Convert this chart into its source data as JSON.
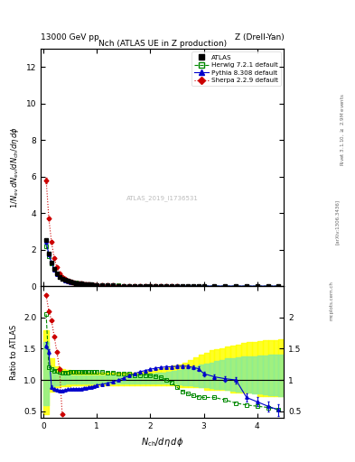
{
  "title_top": "13000 GeV pp",
  "title_top_right": "Z (Drell-Yan)",
  "plot_title": "Nch (ATLAS UE in Z production)",
  "watermark": "ATLAS_2019_I1736531",
  "ylim_main": [
    0,
    13
  ],
  "ylim_ratio": [
    0.39,
    2.5
  ],
  "xlim": [
    -0.05,
    4.5
  ],
  "atlas_x": [
    0.05,
    0.1,
    0.15,
    0.2,
    0.25,
    0.3,
    0.35,
    0.4,
    0.45,
    0.5,
    0.55,
    0.6,
    0.65,
    0.7,
    0.75,
    0.8,
    0.85,
    0.9,
    0.95,
    1.0,
    1.1,
    1.2,
    1.3,
    1.4,
    1.5,
    1.6,
    1.7,
    1.8,
    1.9,
    2.0,
    2.1,
    2.2,
    2.3,
    2.4,
    2.5,
    2.6,
    2.7,
    2.8,
    2.9,
    3.0,
    3.2,
    3.4,
    3.6,
    3.8,
    4.0,
    4.2,
    4.4
  ],
  "atlas_y": [
    2.5,
    1.8,
    1.3,
    0.92,
    0.68,
    0.52,
    0.41,
    0.335,
    0.28,
    0.237,
    0.203,
    0.175,
    0.153,
    0.134,
    0.118,
    0.104,
    0.092,
    0.082,
    0.073,
    0.065,
    0.052,
    0.042,
    0.034,
    0.028,
    0.023,
    0.019,
    0.016,
    0.013,
    0.011,
    0.009,
    0.0075,
    0.0063,
    0.0053,
    0.0044,
    0.0037,
    0.003,
    0.0025,
    0.002,
    0.0016,
    0.0013,
    0.0008,
    0.0005,
    0.0003,
    0.0002,
    0.00012,
    7e-05,
    4e-05
  ],
  "atlas_yerr": [
    0.04,
    0.03,
    0.02,
    0.015,
    0.01,
    0.008,
    0.006,
    0.005,
    0.004,
    0.003,
    0.003,
    0.002,
    0.002,
    0.002,
    0.001,
    0.001,
    0.001,
    0.001,
    0.001,
    0.001,
    0.001,
    0.001,
    0.001,
    0.001,
    0.001,
    0.001,
    0.001,
    0.001,
    0.001,
    0.001,
    0.001,
    0.001,
    0.001,
    0.001,
    0.001,
    0.001,
    0.001,
    0.001,
    0.001,
    0.001,
    0.001,
    0.001,
    0.001,
    0.001,
    0.001,
    0.001,
    0.001
  ],
  "herwig_x": [
    0.05,
    0.1,
    0.15,
    0.2,
    0.25,
    0.3,
    0.35,
    0.4,
    0.45,
    0.5,
    0.55,
    0.6,
    0.65,
    0.7,
    0.75,
    0.8,
    0.85,
    0.9,
    0.95,
    1.0,
    1.1,
    1.2,
    1.3,
    1.4,
    1.5,
    1.6,
    1.7,
    1.8,
    1.9,
    2.0,
    2.1,
    2.2,
    2.3,
    2.4,
    2.5,
    2.6,
    2.7,
    2.8,
    2.9,
    3.0,
    3.2,
    3.4,
    3.6,
    3.8,
    4.0,
    4.2,
    4.4
  ],
  "herwig_y": [
    2.2,
    1.65,
    1.25,
    0.92,
    0.7,
    0.545,
    0.435,
    0.355,
    0.295,
    0.248,
    0.212,
    0.183,
    0.159,
    0.139,
    0.122,
    0.108,
    0.096,
    0.086,
    0.077,
    0.069,
    0.056,
    0.045,
    0.037,
    0.03,
    0.025,
    0.021,
    0.017,
    0.014,
    0.012,
    0.01,
    0.0083,
    0.007,
    0.0058,
    0.0048,
    0.004,
    0.0033,
    0.0028,
    0.0023,
    0.0018,
    0.0015,
    0.001,
    0.0006,
    0.0004,
    0.00025,
    0.00015,
    9e-05,
    5e-05
  ],
  "pythia_x": [
    0.05,
    0.1,
    0.15,
    0.2,
    0.25,
    0.3,
    0.35,
    0.4,
    0.45,
    0.5,
    0.55,
    0.6,
    0.65,
    0.7,
    0.75,
    0.8,
    0.85,
    0.9,
    0.95,
    1.0,
    1.1,
    1.2,
    1.3,
    1.4,
    1.5,
    1.6,
    1.7,
    1.8,
    1.9,
    2.0,
    2.1,
    2.2,
    2.3,
    2.4,
    2.5,
    2.6,
    2.7,
    2.8,
    2.9,
    3.0,
    3.2,
    3.4,
    3.6,
    3.8,
    4.0,
    4.2,
    4.4
  ],
  "pythia_y": [
    2.4,
    1.75,
    1.28,
    0.9,
    0.66,
    0.5,
    0.39,
    0.315,
    0.262,
    0.22,
    0.188,
    0.162,
    0.141,
    0.123,
    0.108,
    0.095,
    0.085,
    0.075,
    0.067,
    0.06,
    0.048,
    0.039,
    0.032,
    0.026,
    0.021,
    0.018,
    0.015,
    0.012,
    0.01,
    0.0085,
    0.007,
    0.0059,
    0.005,
    0.0042,
    0.0035,
    0.003,
    0.0024,
    0.002,
    0.0016,
    0.0013,
    0.0009,
    0.0005,
    0.0003,
    0.0002,
    0.00013,
    8e-05,
    4e-05
  ],
  "sherpa_x": [
    0.05,
    0.1,
    0.15,
    0.2,
    0.25,
    0.3,
    0.35,
    0.4,
    0.45,
    0.5,
    0.55,
    0.6,
    0.65,
    0.7,
    0.75,
    0.8,
    0.85,
    0.9,
    0.95,
    1.0,
    1.1,
    1.2,
    1.3,
    1.4,
    1.5,
    1.6,
    1.7,
    1.8,
    1.9,
    2.0,
    2.1,
    2.2,
    2.3,
    2.4,
    2.5
  ],
  "sherpa_y": [
    5.8,
    3.7,
    2.4,
    1.55,
    1.02,
    0.7,
    0.5,
    0.38,
    0.3,
    0.244,
    0.203,
    0.172,
    0.148,
    0.128,
    0.112,
    0.098,
    0.087,
    0.077,
    0.068,
    0.061,
    0.049,
    0.039,
    0.031,
    0.025,
    0.02,
    0.017,
    0.014,
    0.011,
    0.009,
    0.0075,
    0.006,
    0.005,
    0.004,
    0.003,
    0.0025
  ],
  "sherpa_yerr": [
    0.15,
    0.09,
    0.06,
    0.04,
    0.025,
    0.018,
    0.013,
    0.01,
    0.008,
    0.006,
    0.005,
    0.004,
    0.004,
    0.003,
    0.003,
    0.002,
    0.002,
    0.002,
    0.002,
    0.001,
    0.001,
    0.001,
    0.001,
    0.001,
    0.001,
    0.001,
    0.001,
    0.001,
    0.001,
    0.001,
    0.001,
    0.001,
    0.001,
    0.001,
    0.001
  ],
  "ratio_herwig_x": [
    0.05,
    0.1,
    0.15,
    0.2,
    0.25,
    0.3,
    0.35,
    0.4,
    0.45,
    0.5,
    0.55,
    0.6,
    0.65,
    0.7,
    0.75,
    0.8,
    0.85,
    0.9,
    0.95,
    1.0,
    1.1,
    1.2,
    1.3,
    1.4,
    1.5,
    1.6,
    1.7,
    1.8,
    1.9,
    2.0,
    2.1,
    2.2,
    2.3,
    2.4,
    2.5,
    2.6,
    2.7,
    2.8,
    2.9,
    3.0,
    3.2,
    3.4,
    3.6,
    3.8,
    4.0,
    4.2,
    4.4
  ],
  "ratio_herwig_y": [
    2.05,
    1.2,
    1.18,
    1.15,
    1.15,
    1.13,
    1.12,
    1.12,
    1.12,
    1.13,
    1.13,
    1.13,
    1.13,
    1.13,
    1.13,
    1.13,
    1.13,
    1.13,
    1.13,
    1.13,
    1.13,
    1.12,
    1.12,
    1.1,
    1.1,
    1.1,
    1.08,
    1.08,
    1.08,
    1.07,
    1.06,
    1.04,
    1.0,
    0.96,
    0.88,
    0.82,
    0.78,
    0.75,
    0.73,
    0.72,
    0.72,
    0.68,
    0.63,
    0.6,
    0.58,
    0.56,
    0.53
  ],
  "ratio_pythia_x": [
    0.05,
    0.1,
    0.15,
    0.2,
    0.25,
    0.3,
    0.35,
    0.4,
    0.45,
    0.5,
    0.55,
    0.6,
    0.65,
    0.7,
    0.75,
    0.8,
    0.85,
    0.9,
    0.95,
    1.0,
    1.1,
    1.2,
    1.3,
    1.4,
    1.5,
    1.6,
    1.7,
    1.8,
    1.9,
    2.0,
    2.1,
    2.2,
    2.3,
    2.4,
    2.5,
    2.6,
    2.7,
    2.8,
    2.9,
    3.0,
    3.2,
    3.4,
    3.6,
    3.8,
    4.0,
    4.2,
    4.4
  ],
  "ratio_pythia_y": [
    1.55,
    1.45,
    0.88,
    0.85,
    0.84,
    0.83,
    0.83,
    0.84,
    0.85,
    0.85,
    0.86,
    0.86,
    0.86,
    0.86,
    0.87,
    0.87,
    0.88,
    0.89,
    0.9,
    0.92,
    0.93,
    0.95,
    0.97,
    1.0,
    1.03,
    1.07,
    1.1,
    1.13,
    1.15,
    1.17,
    1.19,
    1.2,
    1.21,
    1.21,
    1.22,
    1.22,
    1.22,
    1.2,
    1.18,
    1.1,
    1.05,
    1.02,
    1.0,
    0.72,
    0.65,
    0.58,
    0.52
  ],
  "ratio_pythia_yerr": [
    0.05,
    0.04,
    0.03,
    0.02,
    0.015,
    0.01,
    0.008,
    0.006,
    0.005,
    0.004,
    0.003,
    0.003,
    0.003,
    0.003,
    0.003,
    0.003,
    0.003,
    0.003,
    0.003,
    0.003,
    0.003,
    0.003,
    0.004,
    0.005,
    0.006,
    0.007,
    0.008,
    0.01,
    0.012,
    0.014,
    0.016,
    0.018,
    0.02,
    0.022,
    0.025,
    0.028,
    0.03,
    0.032,
    0.034,
    0.036,
    0.04,
    0.045,
    0.05,
    0.06,
    0.07,
    0.08,
    0.09
  ],
  "ratio_sherpa_x": [
    0.05,
    0.1,
    0.15,
    0.2,
    0.25,
    0.3,
    0.35
  ],
  "ratio_sherpa_y": [
    2.35,
    2.1,
    1.95,
    1.7,
    1.45,
    1.18,
    0.45
  ],
  "atlas_color": "#000000",
  "herwig_color": "#008800",
  "pythia_color": "#0000cc",
  "sherpa_color": "#cc0000",
  "band_x_edges": [
    0.0,
    0.1,
    0.2,
    0.3,
    0.4,
    0.5,
    0.6,
    0.7,
    0.8,
    0.9,
    1.0,
    1.1,
    1.2,
    1.3,
    1.4,
    1.5,
    1.6,
    1.7,
    1.8,
    1.9,
    2.0,
    2.1,
    2.2,
    2.3,
    2.4,
    2.5,
    2.6,
    2.7,
    2.8,
    2.9,
    3.0,
    3.1,
    3.2,
    3.3,
    3.4,
    3.5,
    3.6,
    3.7,
    3.8,
    3.9,
    4.0,
    4.1,
    4.2,
    4.3,
    4.4,
    4.5
  ],
  "band_yellow_lo": [
    0.45,
    0.82,
    0.88,
    0.9,
    0.9,
    0.91,
    0.91,
    0.91,
    0.91,
    0.91,
    0.91,
    0.91,
    0.91,
    0.91,
    0.91,
    0.91,
    0.91,
    0.91,
    0.91,
    0.91,
    0.91,
    0.91,
    0.91,
    0.91,
    0.91,
    0.88,
    0.88,
    0.88,
    0.88,
    0.88,
    0.84,
    0.84,
    0.84,
    0.84,
    0.84,
    0.8,
    0.8,
    0.8,
    0.8,
    0.8,
    0.74,
    0.74,
    0.74,
    0.74,
    0.74,
    0.7
  ],
  "band_yellow_hi": [
    1.8,
    1.35,
    1.22,
    1.18,
    1.16,
    1.14,
    1.13,
    1.12,
    1.12,
    1.12,
    1.12,
    1.12,
    1.12,
    1.12,
    1.12,
    1.12,
    1.12,
    1.12,
    1.13,
    1.14,
    1.15,
    1.17,
    1.19,
    1.21,
    1.23,
    1.25,
    1.28,
    1.32,
    1.36,
    1.4,
    1.44,
    1.47,
    1.49,
    1.51,
    1.53,
    1.55,
    1.57,
    1.59,
    1.6,
    1.61,
    1.62,
    1.63,
    1.64,
    1.64,
    1.65,
    1.65
  ],
  "band_green_lo": [
    0.6,
    0.88,
    0.92,
    0.93,
    0.94,
    0.94,
    0.94,
    0.95,
    0.95,
    0.95,
    0.95,
    0.95,
    0.95,
    0.95,
    0.95,
    0.95,
    0.95,
    0.95,
    0.95,
    0.95,
    0.95,
    0.95,
    0.95,
    0.94,
    0.94,
    0.93,
    0.92,
    0.91,
    0.9,
    0.89,
    0.88,
    0.87,
    0.86,
    0.85,
    0.84,
    0.83,
    0.82,
    0.81,
    0.8,
    0.79,
    0.78,
    0.77,
    0.76,
    0.75,
    0.74,
    0.73
  ],
  "band_green_hi": [
    1.6,
    1.2,
    1.12,
    1.1,
    1.09,
    1.08,
    1.08,
    1.07,
    1.07,
    1.07,
    1.07,
    1.07,
    1.07,
    1.07,
    1.07,
    1.07,
    1.07,
    1.07,
    1.08,
    1.09,
    1.1,
    1.11,
    1.12,
    1.13,
    1.14,
    1.16,
    1.18,
    1.2,
    1.22,
    1.24,
    1.26,
    1.28,
    1.3,
    1.32,
    1.34,
    1.35,
    1.36,
    1.37,
    1.38,
    1.38,
    1.39,
    1.39,
    1.4,
    1.4,
    1.4,
    1.4
  ]
}
